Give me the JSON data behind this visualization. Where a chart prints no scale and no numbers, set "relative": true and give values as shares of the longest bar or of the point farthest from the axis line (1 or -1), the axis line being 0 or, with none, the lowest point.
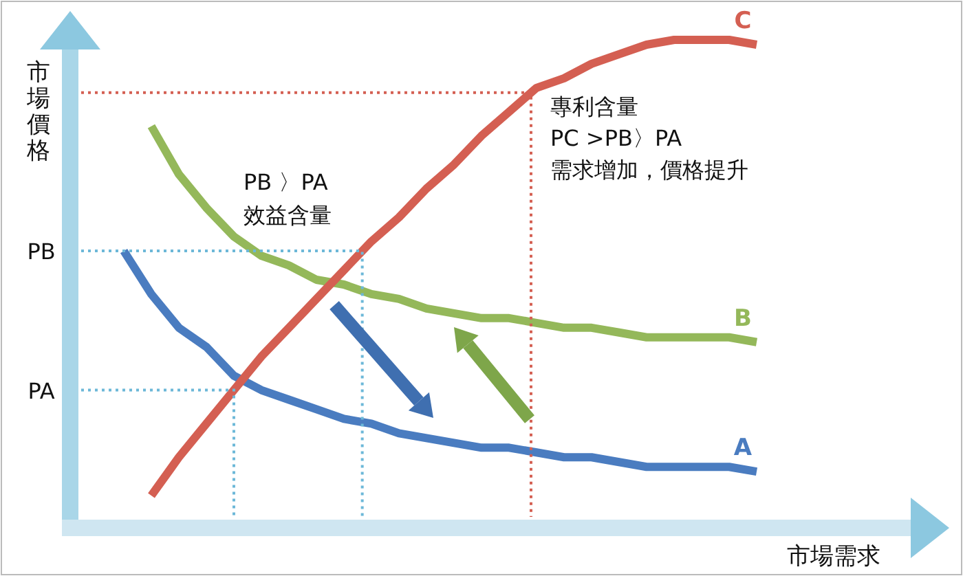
{
  "chart_data": {
    "type": "line",
    "relative": true,
    "xlabel": "市場需求",
    "ylabel": "市場價格",
    "categories": [
      null,
      null,
      null,
      null,
      null,
      null,
      null,
      null,
      null,
      null,
      null,
      null,
      null,
      null,
      null,
      null,
      null,
      null,
      null,
      null,
      null,
      null,
      null,
      null
    ],
    "series": [
      {
        "name": "A",
        "color": "#4a7cc0",
        "values": [
          0.56,
          0.47,
          0.4,
          0.36,
          0.3,
          0.27,
          0.25,
          0.23,
          0.21,
          0.2,
          0.18,
          0.17,
          0.16,
          0.15,
          0.15,
          0.14,
          0.13,
          0.13,
          0.12,
          0.11,
          0.11,
          0.11,
          0.11,
          0.1
        ]
      },
      {
        "name": "B",
        "color": "#94b85a",
        "values": [
          null,
          0.82,
          0.72,
          0.65,
          0.59,
          0.55,
          0.53,
          0.5,
          0.49,
          0.47,
          0.46,
          0.44,
          0.43,
          0.42,
          0.42,
          0.41,
          0.4,
          0.4,
          0.39,
          0.38,
          0.38,
          0.38,
          0.38,
          0.37
        ]
      },
      {
        "name": "C",
        "color": "#d45f52",
        "values": [
          null,
          0.05,
          0.13,
          0.2,
          0.27,
          0.34,
          0.4,
          0.46,
          0.52,
          0.58,
          0.63,
          0.69,
          0.74,
          0.8,
          0.85,
          0.9,
          0.92,
          0.95,
          0.97,
          0.99,
          1.0,
          1.0,
          1.0,
          0.99
        ]
      }
    ],
    "ref_lines": [
      {
        "axis": "y",
        "value": 0.56,
        "label": "PB",
        "color": "#6cb8d8",
        "line_style": "dotted"
      },
      {
        "axis": "y",
        "value": 0.27,
        "label": "PA",
        "color": "#6cb8d8",
        "line_style": "dotted"
      },
      {
        "axis": "y",
        "value": 0.89,
        "color": "#d45f52",
        "line_style": "dotted"
      }
    ],
    "annotations": [
      "PB 〉PA",
      "效益含量",
      "專利含量",
      "PC >PB〉PA",
      "需求增加，價格提升"
    ],
    "marker": "none",
    "line_style": "solid"
  }
}
